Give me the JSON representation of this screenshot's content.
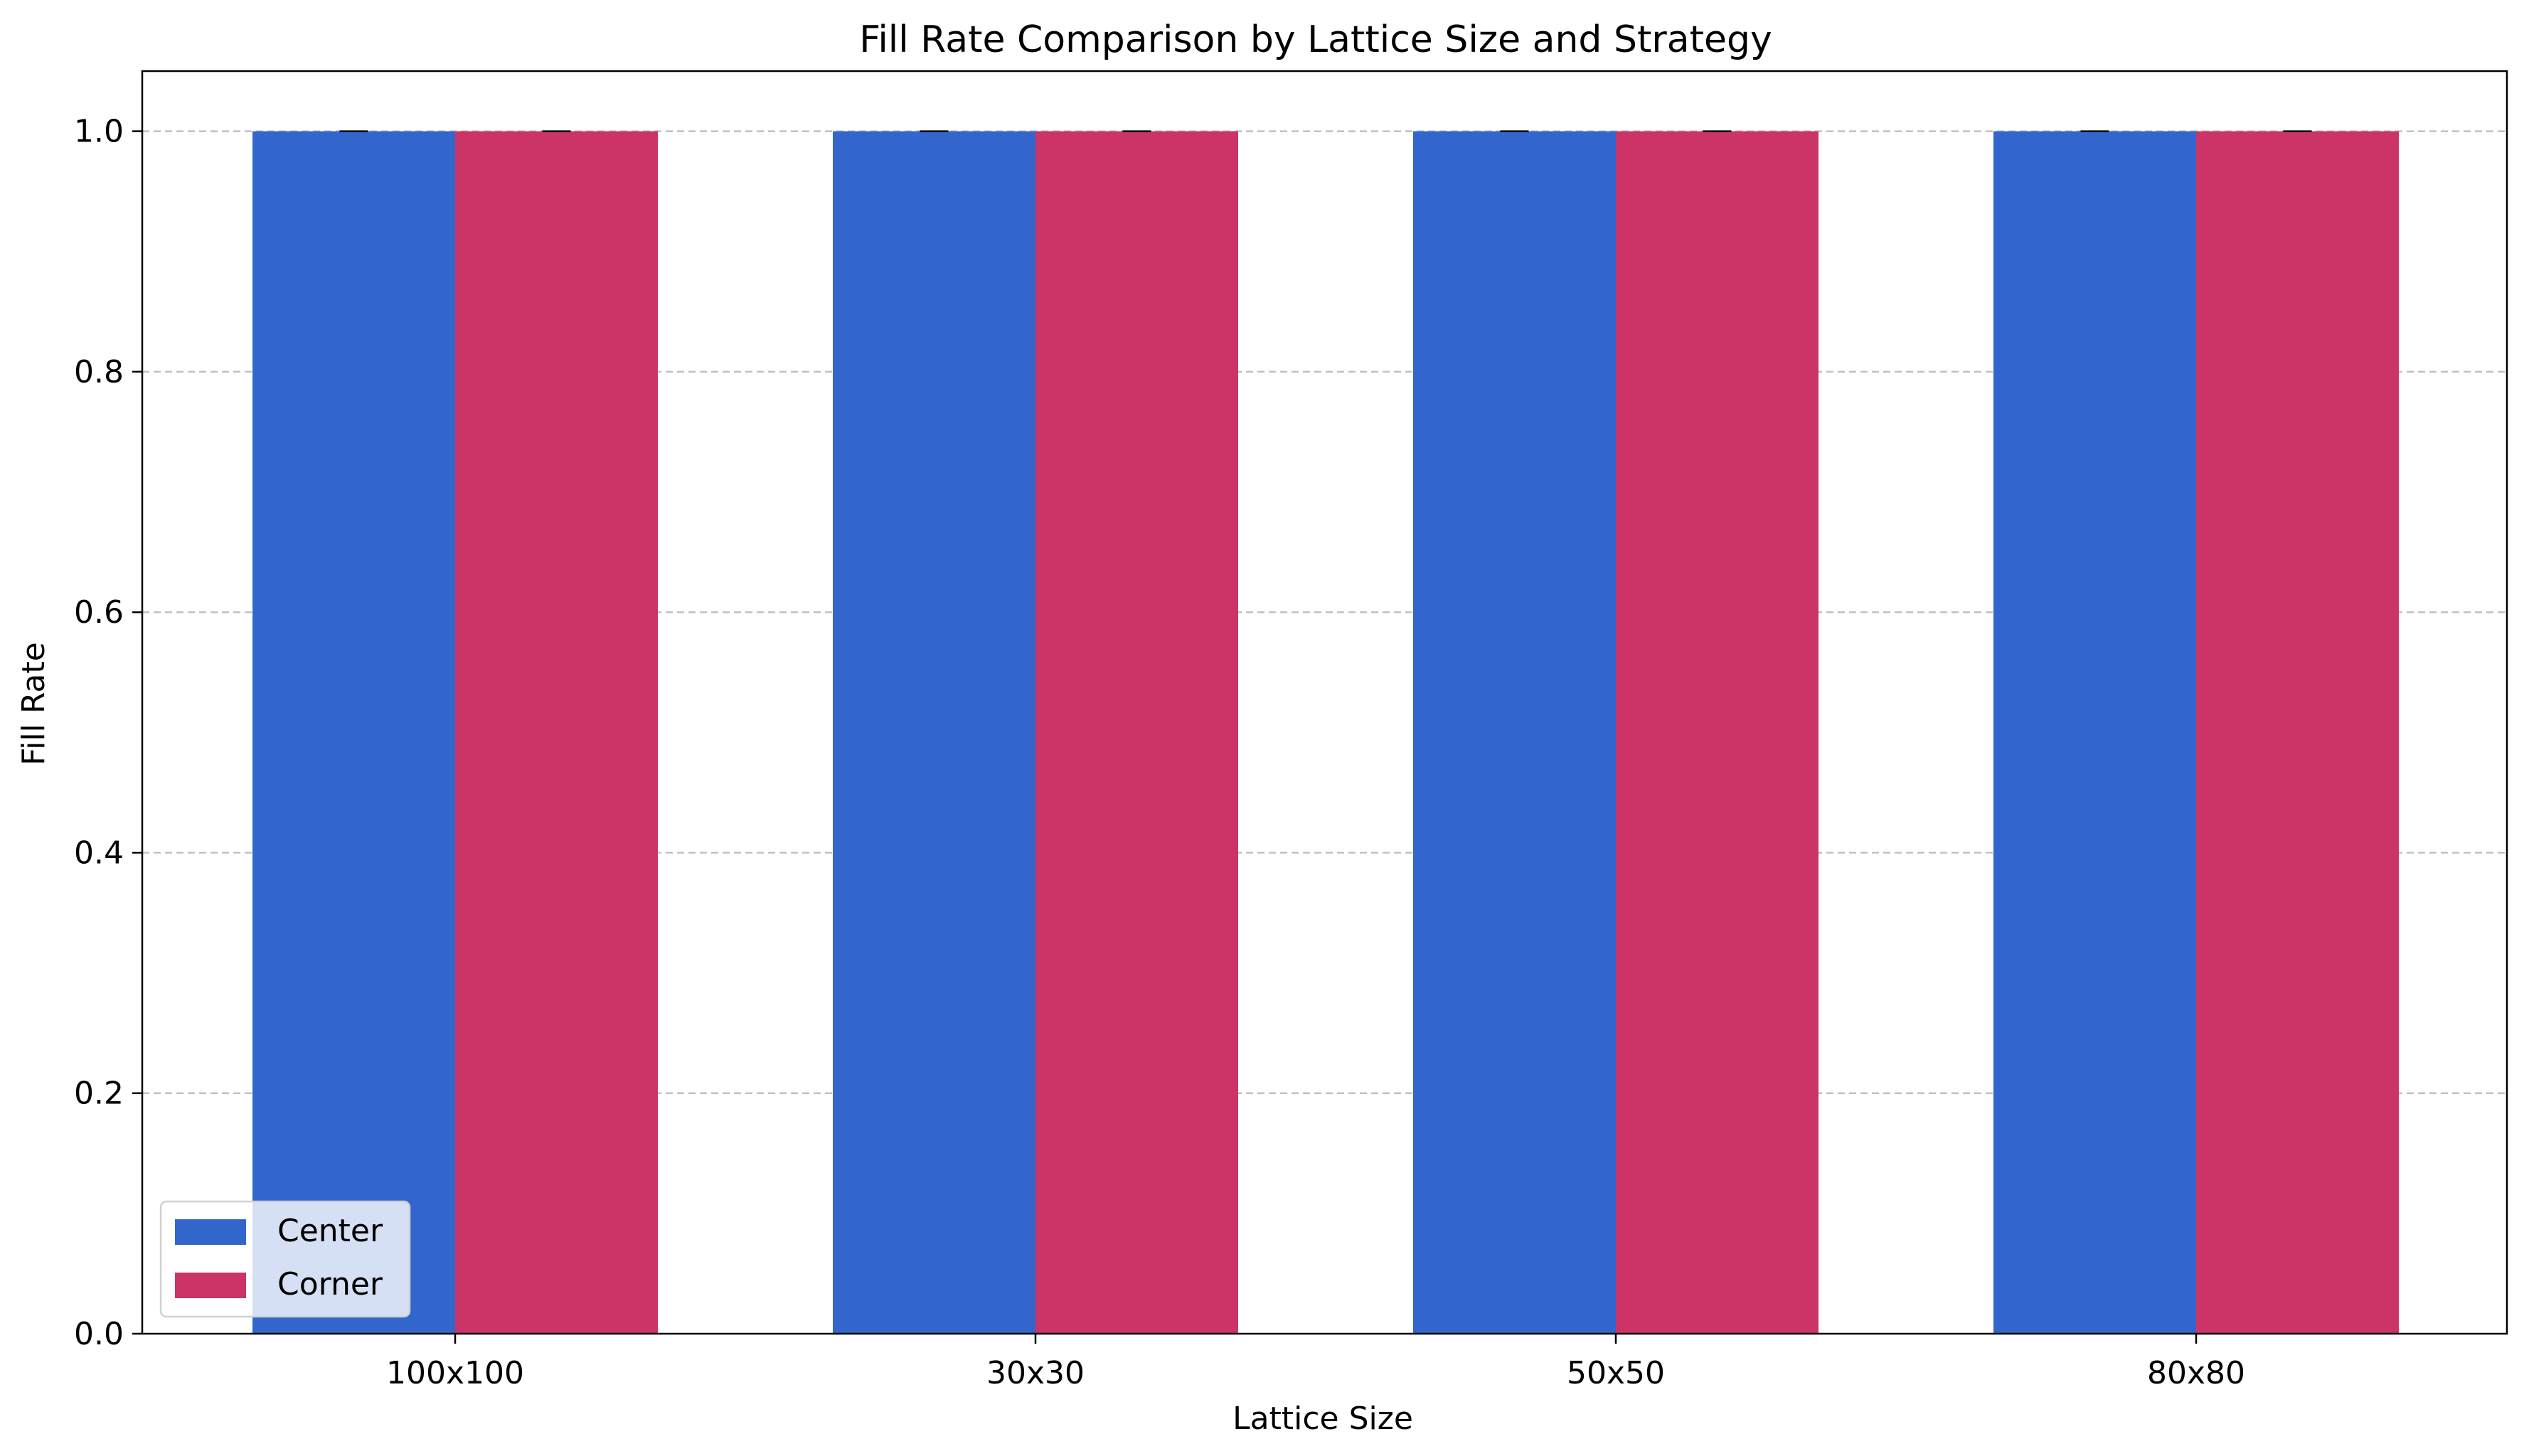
{
  "chart_data": {
    "type": "bar",
    "title": "Fill Rate Comparison by Lattice Size and Strategy",
    "xlabel": "Lattice Size",
    "ylabel": "Fill Rate",
    "categories": [
      "100x100",
      "30x30",
      "50x50",
      "80x80"
    ],
    "series": [
      {
        "name": "Center",
        "color": "#3366cc",
        "values": [
          1.0,
          1.0,
          1.0,
          1.0
        ],
        "errors": [
          0.0,
          0.0,
          0.0,
          0.0
        ]
      },
      {
        "name": "Corner",
        "color": "#cc3366",
        "values": [
          1.0,
          1.0,
          1.0,
          1.0
        ],
        "errors": [
          0.0,
          0.0,
          0.0,
          0.0
        ]
      }
    ],
    "ylim": [
      0,
      1.05
    ],
    "yticks": [
      0.0,
      0.2,
      0.4,
      0.6,
      0.8,
      1.0
    ],
    "ytick_labels": [
      "0.0",
      "0.2",
      "0.4",
      "0.6",
      "0.8",
      "1.0"
    ],
    "grid": {
      "axis": "y",
      "style": "dashed",
      "color": "#c0c0c0"
    },
    "legend": {
      "placement": "lower-left",
      "entries": [
        "Center",
        "Corner"
      ]
    }
  }
}
